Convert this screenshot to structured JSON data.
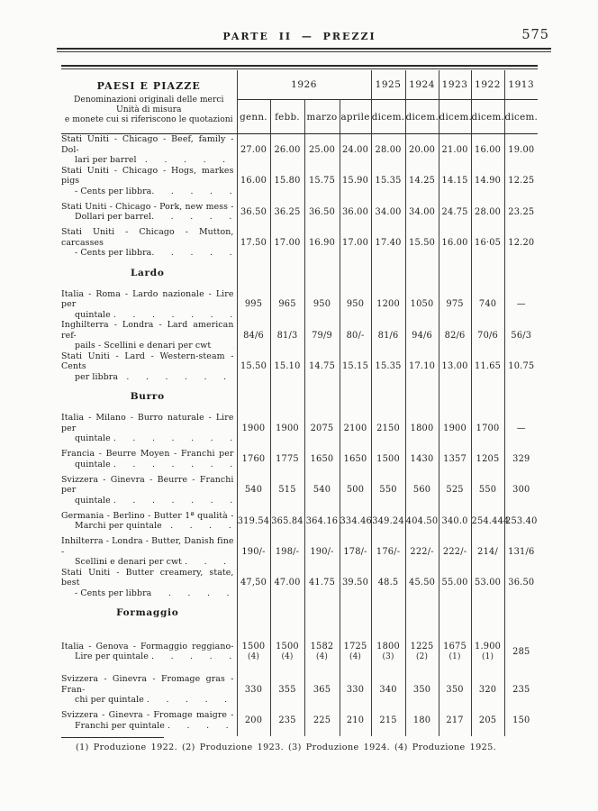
{
  "page": {
    "header_title": "PARTE II — PREZZI",
    "page_number": "575"
  },
  "footnote": "(1) Produzione 1922. (2) Produzione 1923. (3) Produzione 1924. (4) Produzione 1925.",
  "table": {
    "header": {
      "col1_title": "PAESI E PIAZZE",
      "col1_sub": [
        "Denominazioni originali delle merci",
        "Unità di misura",
        "e monete cui si riferiscono le quotazioni"
      ],
      "year_group": "1926",
      "years": [
        "1925",
        "1924",
        "1923",
        "1922",
        "1913"
      ],
      "months": [
        "genn.",
        "febb.",
        "marzo",
        "aprile",
        "dicem.",
        "dicem.",
        "dicem.",
        "dicem.",
        "dicem."
      ]
    },
    "rows": [
      {
        "type": "item",
        "lines": [
          "Stati Uniti - Chicago - Beef, family - Dol-",
          "lari per barrel   .      .      .      .      ."
        ],
        "values": [
          "27.00",
          "26.00",
          "25.00",
          "24.00",
          "28.00",
          "20.00",
          "21.00",
          "16.00",
          "19.00"
        ]
      },
      {
        "type": "item",
        "lines": [
          "Stati Uniti - Chicago - Hogs, markes pigs",
          "- Cents per libbra.      .      .      .      ."
        ],
        "values": [
          "16.00",
          "15.80",
          "15.75",
          "15.90",
          "15.35",
          "14.25",
          "14.15",
          "14.90",
          "12.25"
        ]
      },
      {
        "type": "item",
        "lines": [
          "Stati Uniti - Chicago - Pork, new mess -",
          "Dollari per barrel.      .      .      .      ."
        ],
        "values": [
          "36.50",
          "36.25",
          "36.50",
          "36.00",
          "34.00",
          "34.00",
          "24.75",
          "28.00",
          "23.25"
        ]
      },
      {
        "type": "item",
        "lines": [
          "Stati Uniti - Chicago - Mutton, carcasses",
          "- Cents per libbra.      .      .      .      ."
        ],
        "values": [
          "17.50",
          "17.00",
          "16.90",
          "17.00",
          "17.40",
          "15.50",
          "16.00",
          "16·05",
          "12.20"
        ]
      },
      {
        "type": "section",
        "label": "Lardo"
      },
      {
        "type": "item",
        "lines": [
          "Italia - Roma - Lardo nazionale - Lire per",
          "quintale .      .      .      .      .      .      ."
        ],
        "values": [
          "995",
          "965",
          "950",
          "950",
          "1200",
          "1050",
          "975",
          "740",
          "—"
        ]
      },
      {
        "type": "item",
        "lines": [
          "Inghilterra - Londra - Lard american ref-",
          "pails - Scellini e denari per cwt        ."
        ],
        "values": [
          "84/6",
          "81/3",
          "79/9",
          "80/-",
          "81/6",
          "94/6",
          "82/6",
          "70/6",
          "56/3"
        ]
      },
      {
        "type": "item",
        "lines": [
          "Stati Uniti - Lard - Western-steam - Cents",
          "per libbra   .      .      .      .      .      .      ."
        ],
        "values": [
          "15.50",
          "15.10",
          "14.75",
          "15.15",
          "15.35",
          "17.10",
          "13.00",
          "11.65",
          "10.75"
        ]
      },
      {
        "type": "section",
        "label": "Burro"
      },
      {
        "type": "item",
        "lines": [
          "Italia - Milano - Burro naturale - Lire per",
          "quintale .      .      .      .      .      .      ."
        ],
        "values": [
          "1900",
          "1900",
          "2075",
          "2100",
          "2150",
          "1800",
          "1900",
          "1700",
          "—"
        ]
      },
      {
        "type": "item",
        "lines": [
          "Francia - Beurre Moyen - Franchi per",
          "quintale .      .      .      .      .      .      ."
        ],
        "values": [
          "1760",
          "1775",
          "1650",
          "1650",
          "1500",
          "1430",
          "1357",
          "1205",
          "329"
        ]
      },
      {
        "type": "item",
        "lines": [
          "Svizzera - Ginevra - Beurre - Franchi per",
          "quintale .      .      .      .      .      .      ."
        ],
        "values": [
          "540",
          "515",
          "540",
          "500",
          "550",
          "560",
          "525",
          "550",
          "300"
        ]
      },
      {
        "type": "item",
        "lines": [
          "Germania - Berlino - Butter 1ª qualità -",
          "Marchi per quintale   .      .      .      ."
        ],
        "values": [
          "319.54",
          "365.84",
          "364.16",
          "334.46",
          "349.24",
          "404.50",
          "340.0",
          "254.444",
          "253.40"
        ]
      },
      {
        "type": "item",
        "lines": [
          "Inhilterra - Londra - Butter, Danish fine -",
          "Scellini e denari per cwt .      .      ."
        ],
        "values": [
          "190/-",
          "198/-",
          "190/-",
          "178/-",
          "176/-",
          "222/-",
          "222/-",
          "214/",
          "131/6"
        ]
      },
      {
        "type": "item",
        "lines": [
          "Stati Uniti - Butter creamery, state, best",
          "- Cents per libbra      .      .      .      ."
        ],
        "values": [
          "47,50",
          "47.00",
          "41.75",
          "39.50",
          "48.5",
          "45.50",
          "55.00",
          "53.00",
          "36.50"
        ]
      },
      {
        "type": "section",
        "label": "Formaggio"
      },
      {
        "type": "item",
        "tall": true,
        "lines": [
          "Italia - Genova - Formaggio reggiano-",
          "Lire per quintale .      .      .      .      ."
        ],
        "values": [
          "1500",
          "1500",
          "1582",
          "1725",
          "1800",
          "1225",
          "1675",
          "1.900",
          "285"
        ],
        "notes": [
          "(4)",
          "(4)",
          "(4)",
          "(4)",
          "(3)",
          "(2)",
          "(1)",
          "(1)",
          ""
        ]
      },
      {
        "type": "item",
        "lines": [
          "Svizzera - Ginevra - Fromage gras - Fran-",
          "chi per quintale .      .      .      .      ."
        ],
        "values": [
          "330",
          "355",
          "365",
          "330",
          "340",
          "350",
          "350",
          "320",
          "235"
        ]
      },
      {
        "type": "item",
        "lines": [
          "Svizzera - Ginevra - Fromage maigre -",
          "Franchi per quintale .      .      .      ."
        ],
        "values": [
          "200",
          "235",
          "225",
          "210",
          "215",
          "180",
          "217",
          "205",
          "150"
        ]
      }
    ]
  }
}
